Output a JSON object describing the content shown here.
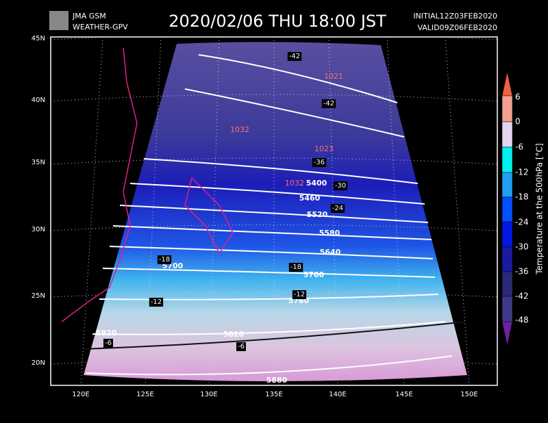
{
  "header": {
    "logo_line1": "JMA GSM",
    "logo_line2": "WEATHER-GPV",
    "title": "2020/02/06 THU 18:00 JST",
    "initial": "INITIAL12Z03FEB2020",
    "valid": "VALID09Z06FEB2020"
  },
  "map": {
    "lat_labels": [
      "45N",
      "40N",
      "35N",
      "30N",
      "25N",
      "20N"
    ],
    "lon_labels": [
      "120E",
      "125E",
      "130E",
      "135E",
      "140E",
      "145E",
      "150E"
    ],
    "height_labels": [
      "5400",
      "5460",
      "5520",
      "5580",
      "5640",
      "5700",
      "5700",
      "5760",
      "5820",
      "5820",
      "5880"
    ],
    "temp_labels": [
      "-42",
      "-42",
      "-36",
      "-30",
      "-24",
      "-18",
      "-18",
      "-12",
      "-12",
      "-6",
      "-6"
    ],
    "pressure_labels": [
      "1021",
      "1032",
      "1023",
      "1032"
    ]
  },
  "colorbar": {
    "title": "Temperature at the 500hPa [°C]",
    "ticks": [
      "6",
      "0",
      "-6",
      "-12",
      "-18",
      "-24",
      "-30",
      "-36",
      "-42",
      "-48"
    ]
  }
}
